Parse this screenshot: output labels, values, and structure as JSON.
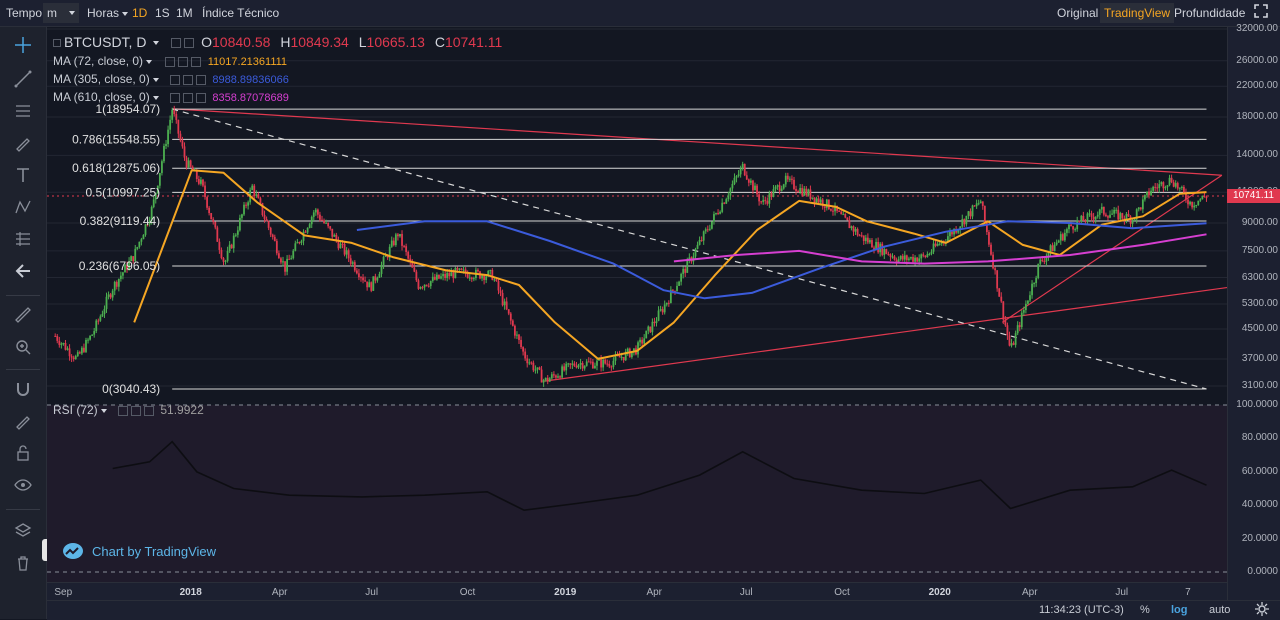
{
  "toolbar": {
    "tempo": "Tempo",
    "interval_value": "m",
    "hours": "Horas",
    "buttons": [
      "1D",
      "1S",
      "1M"
    ],
    "active": "1D",
    "indicators": "Índice Técnico",
    "views": [
      "Original",
      "TradingView",
      "Profundidade"
    ],
    "active_view": "TradingView"
  },
  "legend": {
    "symbol": "BTCUSDT, D",
    "o_label": "O",
    "o": "10840.58",
    "h_label": "H",
    "h": "10849.34",
    "l_label": "L",
    "l": "10665.13",
    "c_label": "C",
    "c": "10741.11",
    "ma": [
      {
        "label": "MA (72, close, 0)",
        "value": "11017.21361111",
        "color": "#f5a623"
      },
      {
        "label": "MA (305, close, 0)",
        "value": "8988.89836066",
        "color": "#3b5bdb"
      },
      {
        "label": "MA (610, close, 0)",
        "value": "8358.87078689",
        "color": "#d63fd1"
      }
    ]
  },
  "fib_levels": [
    {
      "label": "1(18954.07)",
      "value": 18954.07
    },
    {
      "label": "0.786(15548.55)",
      "value": 15548.55
    },
    {
      "label": "0.618(12875.06)",
      "value": 12875.06
    },
    {
      "label": "0.5(10997.25)",
      "value": 10997.25
    },
    {
      "label": "0.382(9119.44)",
      "value": 9119.44
    },
    {
      "label": "0.236(6796.05)",
      "value": 6796.05
    },
    {
      "label": "0(3040.43)",
      "value": 3040.43
    }
  ],
  "rsi": {
    "label": "RSI (72)",
    "value": "51.9922"
  },
  "last_price": "10741.11",
  "watermark": "Chart by TradingView",
  "bottom": {
    "time": "11:34:23 (UTC-3)",
    "pct": "%",
    "log": "log",
    "auto": "auto"
  },
  "colors": {
    "accent": "#f5a623",
    "down": "#e0394f",
    "up": "#4caf50",
    "ma72": "#f5a623",
    "ma305": "#3b5bdb",
    "ma610": "#d63fd1",
    "trend": "#e0394f"
  },
  "chart_data": {
    "type": "line",
    "title": "BTCUSDT, D",
    "scale": "log",
    "ylim": [
      2900,
      33000
    ],
    "price_ticks": [
      32000,
      26000,
      22000,
      18000,
      14000,
      11000,
      9000,
      7500,
      6300,
      5300,
      4500,
      3700,
      3100
    ],
    "price_tick_labels": [
      "32000.00",
      "26000.00",
      "22000.00",
      "18000.00",
      "14000.00",
      "11000.00",
      "9000.00",
      "7500.00",
      "6300.00",
      "5300.00",
      "4500.00",
      "3700.00",
      "3100.00"
    ],
    "rsi_ticks": [
      "100.0000",
      "80.0000",
      "60.0000",
      "40.0000",
      "20.0000",
      "0.0000"
    ],
    "x_ticks": [
      "Sep",
      "2018",
      "Apr",
      "Jul",
      "Oct",
      "2019",
      "Apr",
      "Jul",
      "Oct",
      "2020",
      "Apr",
      "Jul",
      "7"
    ],
    "price_series": [
      {
        "date": "2017-08-25",
        "value": 4300
      },
      {
        "date": "2017-09-15",
        "value": 3700
      },
      {
        "date": "2017-10-01",
        "value": 4400
      },
      {
        "date": "2017-10-20",
        "value": 5900
      },
      {
        "date": "2017-11-10",
        "value": 7300
      },
      {
        "date": "2017-11-28",
        "value": 10000
      },
      {
        "date": "2017-12-17",
        "value": 18954
      },
      {
        "date": "2017-12-30",
        "value": 13500
      },
      {
        "date": "2018-01-15",
        "value": 11500
      },
      {
        "date": "2018-02-06",
        "value": 6900
      },
      {
        "date": "2018-03-05",
        "value": 11400
      },
      {
        "date": "2018-04-06",
        "value": 6700
      },
      {
        "date": "2018-05-05",
        "value": 9800
      },
      {
        "date": "2018-06-28",
        "value": 5900
      },
      {
        "date": "2018-07-25",
        "value": 8400
      },
      {
        "date": "2018-08-14",
        "value": 6000
      },
      {
        "date": "2018-09-20",
        "value": 6500
      },
      {
        "date": "2018-10-25",
        "value": 6400
      },
      {
        "date": "2018-11-25",
        "value": 3800
      },
      {
        "date": "2018-12-15",
        "value": 3200
      },
      {
        "date": "2019-01-15",
        "value": 3600
      },
      {
        "date": "2019-02-15",
        "value": 3600
      },
      {
        "date": "2019-03-15",
        "value": 3950
      },
      {
        "date": "2019-04-10",
        "value": 5200
      },
      {
        "date": "2019-05-15",
        "value": 7900
      },
      {
        "date": "2019-06-26",
        "value": 13000
      },
      {
        "date": "2019-07-15",
        "value": 10200
      },
      {
        "date": "2019-08-06",
        "value": 11900
      },
      {
        "date": "2019-09-20",
        "value": 10000
      },
      {
        "date": "2019-10-20",
        "value": 8200
      },
      {
        "date": "2019-11-25",
        "value": 7100
      },
      {
        "date": "2019-12-20",
        "value": 7200
      },
      {
        "date": "2020-01-20",
        "value": 8700
      },
      {
        "date": "2020-02-13",
        "value": 10400
      },
      {
        "date": "2020-03-13",
        "value": 3900
      },
      {
        "date": "2020-04-10",
        "value": 6900
      },
      {
        "date": "2020-05-10",
        "value": 8800
      },
      {
        "date": "2020-06-10",
        "value": 9700
      },
      {
        "date": "2020-07-10",
        "value": 9250
      },
      {
        "date": "2020-07-28",
        "value": 11200
      },
      {
        "date": "2020-08-17",
        "value": 12000
      },
      {
        "date": "2020-09-05",
        "value": 10200
      },
      {
        "date": "2020-09-20",
        "value": 10741
      }
    ],
    "series": [
      {
        "name": "MA (72, close, 0)",
        "values": [
          {
            "date": "2017-11-10",
            "value": 4700
          },
          {
            "date": "2017-12-10",
            "value": 8000
          },
          {
            "date": "2018-01-05",
            "value": 12700
          },
          {
            "date": "2018-02-05",
            "value": 12500
          },
          {
            "date": "2018-03-10",
            "value": 10300
          },
          {
            "date": "2018-04-25",
            "value": 8300
          },
          {
            "date": "2018-06-10",
            "value": 7900
          },
          {
            "date": "2018-07-20",
            "value": 7200
          },
          {
            "date": "2018-09-10",
            "value": 6600
          },
          {
            "date": "2018-10-20",
            "value": 6400
          },
          {
            "date": "2018-11-20",
            "value": 6000
          },
          {
            "date": "2018-12-25",
            "value": 4700
          },
          {
            "date": "2019-02-05",
            "value": 3700
          },
          {
            "date": "2019-03-15",
            "value": 3900
          },
          {
            "date": "2019-04-20",
            "value": 4700
          },
          {
            "date": "2019-05-30",
            "value": 6400
          },
          {
            "date": "2019-07-10",
            "value": 8600
          },
          {
            "date": "2019-08-20",
            "value": 10400
          },
          {
            "date": "2019-09-25",
            "value": 10000
          },
          {
            "date": "2019-10-25",
            "value": 9100
          },
          {
            "date": "2019-12-10",
            "value": 8400
          },
          {
            "date": "2020-01-10",
            "value": 7900
          },
          {
            "date": "2020-02-20",
            "value": 9100
          },
          {
            "date": "2020-03-25",
            "value": 7800
          },
          {
            "date": "2020-04-30",
            "value": 7300
          },
          {
            "date": "2020-06-10",
            "value": 8900
          },
          {
            "date": "2020-07-20",
            "value": 9400
          },
          {
            "date": "2020-08-25",
            "value": 10900
          },
          {
            "date": "2020-09-20",
            "value": 11017
          }
        ]
      },
      {
        "name": "MA (305, close, 0)",
        "values": [
          {
            "date": "2018-06-15",
            "value": 8600
          },
          {
            "date": "2018-08-20",
            "value": 9100
          },
          {
            "date": "2018-10-20",
            "value": 9100
          },
          {
            "date": "2018-12-20",
            "value": 8000
          },
          {
            "date": "2019-02-20",
            "value": 6900
          },
          {
            "date": "2019-04-10",
            "value": 5800
          },
          {
            "date": "2019-05-20",
            "value": 5500
          },
          {
            "date": "2019-07-05",
            "value": 5700
          },
          {
            "date": "2019-09-10",
            "value": 6700
          },
          {
            "date": "2019-11-10",
            "value": 7700
          },
          {
            "date": "2020-01-10",
            "value": 8500
          },
          {
            "date": "2020-03-10",
            "value": 9100
          },
          {
            "date": "2020-05-10",
            "value": 9000
          },
          {
            "date": "2020-07-10",
            "value": 8700
          },
          {
            "date": "2020-09-20",
            "value": 8989
          }
        ]
      },
      {
        "name": "MA (610, close, 0)",
        "values": [
          {
            "date": "2019-04-20",
            "value": 7000
          },
          {
            "date": "2019-06-20",
            "value": 7300
          },
          {
            "date": "2019-08-20",
            "value": 7500
          },
          {
            "date": "2019-10-20",
            "value": 7000
          },
          {
            "date": "2019-12-20",
            "value": 6900
          },
          {
            "date": "2020-02-20",
            "value": 7000
          },
          {
            "date": "2020-05-10",
            "value": 7300
          },
          {
            "date": "2020-07-20",
            "value": 7800
          },
          {
            "date": "2020-09-20",
            "value": 8359
          }
        ]
      }
    ],
    "rsi_series": [
      {
        "date": "2017-10-20",
        "value": 62
      },
      {
        "date": "2017-11-25",
        "value": 66
      },
      {
        "date": "2017-12-17",
        "value": 78
      },
      {
        "date": "2018-01-10",
        "value": 60
      },
      {
        "date": "2018-02-15",
        "value": 50
      },
      {
        "date": "2018-04-10",
        "value": 46
      },
      {
        "date": "2018-06-20",
        "value": 45
      },
      {
        "date": "2018-08-20",
        "value": 46
      },
      {
        "date": "2018-10-20",
        "value": 48
      },
      {
        "date": "2018-11-25",
        "value": 37
      },
      {
        "date": "2019-01-15",
        "value": 41
      },
      {
        "date": "2019-03-15",
        "value": 46
      },
      {
        "date": "2019-05-15",
        "value": 58
      },
      {
        "date": "2019-06-26",
        "value": 72
      },
      {
        "date": "2019-08-15",
        "value": 56
      },
      {
        "date": "2019-10-20",
        "value": 49
      },
      {
        "date": "2019-12-20",
        "value": 47
      },
      {
        "date": "2020-02-13",
        "value": 55
      },
      {
        "date": "2020-03-13",
        "value": 38
      },
      {
        "date": "2020-05-10",
        "value": 49
      },
      {
        "date": "2020-07-10",
        "value": 51
      },
      {
        "date": "2020-08-17",
        "value": 61
      },
      {
        "date": "2020-09-20",
        "value": 52
      }
    ]
  }
}
